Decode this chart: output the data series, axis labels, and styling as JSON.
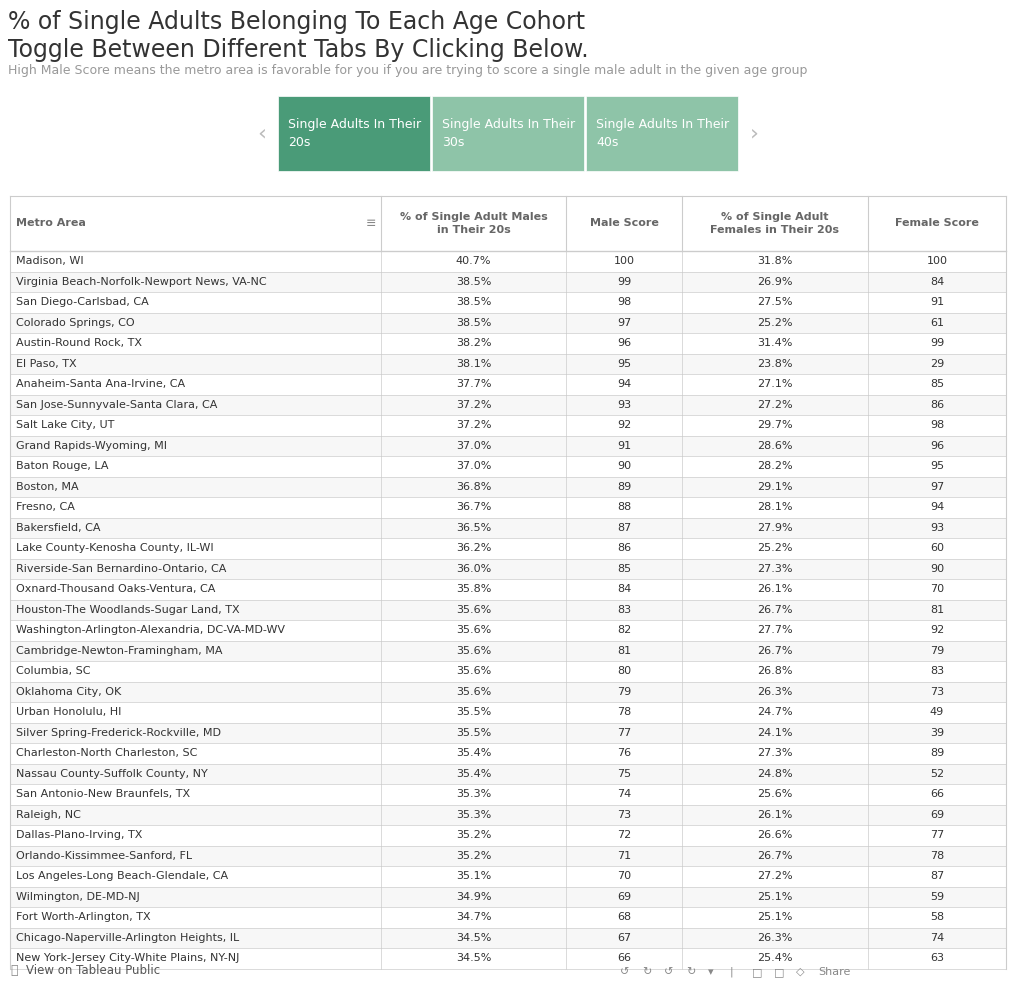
{
  "title_line1": "% of Single Adults Belonging To Each Age Cohort",
  "title_line2": "Toggle Between Different Tabs By Clicking Below.",
  "subtitle": "High Male Score means the metro area is favorable for you if you are trying to score a single male adult in the given age group",
  "tabs": [
    {
      "label": "Single Adults In Their\n20s",
      "active": true,
      "color": "#4a9b78"
    },
    {
      "label": "Single Adults In Their\n30s",
      "active": false,
      "color": "#8ec4a8"
    },
    {
      "label": "Single Adults In Their\n40s",
      "active": false,
      "color": "#8ec4a8"
    }
  ],
  "tab_arrow_color": "#bbbbbb",
  "col_headers": [
    "Metro Area",
    "% of Single Adult Males\nin Their 20s",
    "Male Score",
    "% of Single Adult\nFemales in Their 20s",
    "Female Score"
  ],
  "header_text_color": "#666666",
  "row_data": [
    [
      "Madison, WI",
      "40.7%",
      "100",
      "31.8%",
      "100"
    ],
    [
      "Virginia Beach-Norfolk-Newport News, VA-NC",
      "38.5%",
      "99",
      "26.9%",
      "84"
    ],
    [
      "San Diego-Carlsbad, CA",
      "38.5%",
      "98",
      "27.5%",
      "91"
    ],
    [
      "Colorado Springs, CO",
      "38.5%",
      "97",
      "25.2%",
      "61"
    ],
    [
      "Austin-Round Rock, TX",
      "38.2%",
      "96",
      "31.4%",
      "99"
    ],
    [
      "El Paso, TX",
      "38.1%",
      "95",
      "23.8%",
      "29"
    ],
    [
      "Anaheim-Santa Ana-Irvine, CA",
      "37.7%",
      "94",
      "27.1%",
      "85"
    ],
    [
      "San Jose-Sunnyvale-Santa Clara, CA",
      "37.2%",
      "93",
      "27.2%",
      "86"
    ],
    [
      "Salt Lake City, UT",
      "37.2%",
      "92",
      "29.7%",
      "98"
    ],
    [
      "Grand Rapids-Wyoming, MI",
      "37.0%",
      "91",
      "28.6%",
      "96"
    ],
    [
      "Baton Rouge, LA",
      "37.0%",
      "90",
      "28.2%",
      "95"
    ],
    [
      "Boston, MA",
      "36.8%",
      "89",
      "29.1%",
      "97"
    ],
    [
      "Fresno, CA",
      "36.7%",
      "88",
      "28.1%",
      "94"
    ],
    [
      "Bakersfield, CA",
      "36.5%",
      "87",
      "27.9%",
      "93"
    ],
    [
      "Lake County-Kenosha County, IL-WI",
      "36.2%",
      "86",
      "25.2%",
      "60"
    ],
    [
      "Riverside-San Bernardino-Ontario, CA",
      "36.0%",
      "85",
      "27.3%",
      "90"
    ],
    [
      "Oxnard-Thousand Oaks-Ventura, CA",
      "35.8%",
      "84",
      "26.1%",
      "70"
    ],
    [
      "Houston-The Woodlands-Sugar Land, TX",
      "35.6%",
      "83",
      "26.7%",
      "81"
    ],
    [
      "Washington-Arlington-Alexandria, DC-VA-MD-WV",
      "35.6%",
      "82",
      "27.7%",
      "92"
    ],
    [
      "Cambridge-Newton-Framingham, MA",
      "35.6%",
      "81",
      "26.7%",
      "79"
    ],
    [
      "Columbia, SC",
      "35.6%",
      "80",
      "26.8%",
      "83"
    ],
    [
      "Oklahoma City, OK",
      "35.6%",
      "79",
      "26.3%",
      "73"
    ],
    [
      "Urban Honolulu, HI",
      "35.5%",
      "78",
      "24.7%",
      "49"
    ],
    [
      "Silver Spring-Frederick-Rockville, MD",
      "35.5%",
      "77",
      "24.1%",
      "39"
    ],
    [
      "Charleston-North Charleston, SC",
      "35.4%",
      "76",
      "27.3%",
      "89"
    ],
    [
      "Nassau County-Suffolk County, NY",
      "35.4%",
      "75",
      "24.8%",
      "52"
    ],
    [
      "San Antonio-New Braunfels, TX",
      "35.3%",
      "74",
      "25.6%",
      "66"
    ],
    [
      "Raleigh, NC",
      "35.3%",
      "73",
      "26.1%",
      "69"
    ],
    [
      "Dallas-Plano-Irving, TX",
      "35.2%",
      "72",
      "26.6%",
      "77"
    ],
    [
      "Orlando-Kissimmee-Sanford, FL",
      "35.2%",
      "71",
      "26.7%",
      "78"
    ],
    [
      "Los Angeles-Long Beach-Glendale, CA",
      "35.1%",
      "70",
      "27.2%",
      "87"
    ],
    [
      "Wilmington, DE-MD-NJ",
      "34.9%",
      "69",
      "25.1%",
      "59"
    ],
    [
      "Fort Worth-Arlington, TX",
      "34.7%",
      "68",
      "25.1%",
      "58"
    ],
    [
      "Chicago-Naperville-Arlington Heights, IL",
      "34.5%",
      "67",
      "26.3%",
      "74"
    ],
    [
      "New York-Jersey City-White Plains, NY-NJ",
      "34.5%",
      "66",
      "25.4%",
      "63"
    ]
  ],
  "table_border_color": "#cccccc",
  "row_text_color": "#333333",
  "header_sort_icon_color": "#888888",
  "bg_color": "#ffffff",
  "footer_text": "View on Tableau Public",
  "title1_fontsize": 17,
  "title2_fontsize": 17,
  "subtitle_fontsize": 9,
  "tab_fontsize": 9,
  "header_fontsize": 8,
  "row_fontsize": 8
}
